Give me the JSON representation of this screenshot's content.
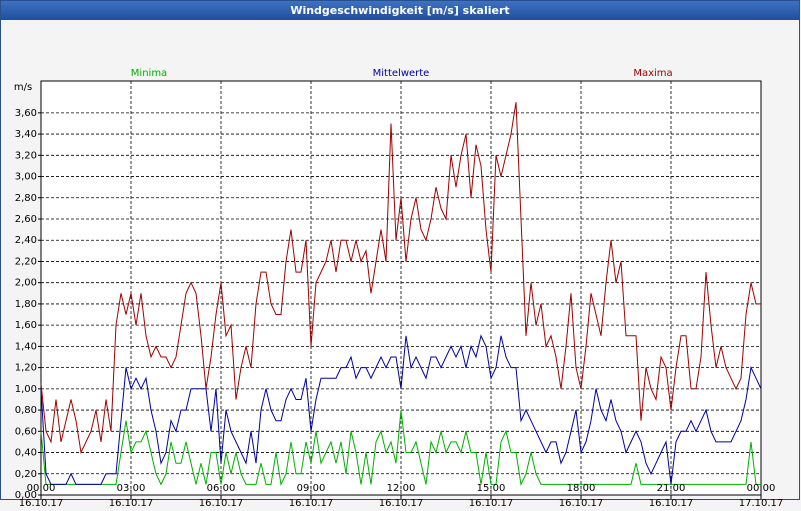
{
  "window_title": "Windgeschwindigkeit [m/s] skaliert",
  "chart_data": {
    "type": "line",
    "ylabel": "m/s",
    "x": [
      0,
      10,
      20,
      30,
      40,
      50,
      60,
      70,
      80,
      90,
      100,
      110,
      120,
      130,
      140,
      150,
      160,
      170,
      180,
      190,
      200,
      210,
      220,
      230,
      240,
      250,
      260,
      270,
      280,
      290,
      300,
      310,
      320,
      330,
      340,
      350,
      360,
      370,
      380,
      390,
      400,
      410,
      420,
      430,
      440,
      450,
      460,
      470,
      480,
      490,
      500,
      510,
      520,
      530,
      540,
      550,
      560,
      570,
      580,
      590,
      600,
      610,
      620,
      630,
      640,
      650,
      660,
      670,
      680,
      690,
      700,
      710,
      720,
      730,
      740,
      750,
      760,
      770,
      780,
      790,
      800,
      810,
      820,
      830,
      840,
      850,
      860,
      870,
      880,
      890,
      900,
      910,
      920,
      930,
      940,
      950,
      960,
      970,
      980,
      990,
      1000,
      1010,
      1020,
      1030,
      1040,
      1050,
      1060,
      1070,
      1080,
      1090,
      1100,
      1110,
      1120,
      1130,
      1140,
      1150,
      1160,
      1170,
      1180,
      1190,
      1200,
      1210,
      1220,
      1230,
      1240,
      1250,
      1260,
      1270,
      1280,
      1290,
      1300,
      1310,
      1320,
      1330,
      1340,
      1350,
      1360,
      1370,
      1380,
      1390,
      1400,
      1410,
      1420,
      1430,
      1440
    ],
    "series": [
      {
        "name": "Minima",
        "color": "#00b000",
        "values": [
          0.6,
          0.1,
          0.1,
          0.1,
          0.1,
          0.1,
          0.1,
          0.1,
          0.1,
          0.1,
          0.1,
          0.1,
          0.1,
          0.1,
          0.1,
          0.1,
          0.4,
          0.7,
          0.4,
          0.5,
          0.5,
          0.6,
          0.4,
          0.2,
          0.1,
          0.2,
          0.5,
          0.3,
          0.3,
          0.5,
          0.3,
          0.1,
          0.3,
          0.1,
          0.4,
          0.4,
          0.1,
          0.4,
          0.2,
          0.4,
          0.2,
          0.1,
          0.1,
          0.1,
          0.3,
          0.1,
          0.1,
          0.4,
          0.1,
          0.2,
          0.5,
          0.2,
          0.2,
          0.5,
          0.3,
          0.6,
          0.3,
          0.4,
          0.5,
          0.3,
          0.5,
          0.2,
          0.6,
          0.4,
          0.1,
          0.4,
          0.1,
          0.5,
          0.6,
          0.4,
          0.5,
          0.3,
          0.8,
          0.4,
          0.4,
          0.5,
          0.3,
          0.1,
          0.5,
          0.4,
          0.6,
          0.4,
          0.5,
          0.5,
          0.4,
          0.6,
          0.4,
          0.4,
          0.1,
          0.4,
          0.1,
          0.1,
          0.5,
          0.6,
          0.4,
          0.4,
          0.1,
          0.2,
          0.4,
          0.2,
          0.1,
          0.1,
          0.1,
          0.1,
          0.1,
          0.1,
          0.1,
          0.1,
          0.1,
          0.1,
          0.1,
          0.1,
          0.1,
          0.1,
          0.1,
          0.1,
          0.1,
          0.1,
          0.1,
          0.3,
          0.1,
          0.1,
          0.1,
          0.1,
          0.1,
          0.1,
          0.1,
          0.1,
          0.1,
          0.1,
          0.1,
          0.1,
          0.1,
          0.1,
          0.1,
          0.1,
          0.1,
          0.1,
          0.1,
          0.1,
          0.1,
          0.1,
          0.5,
          0.1,
          0.1
        ]
      },
      {
        "name": "Mittelwerte",
        "color": "#0000a0",
        "values": [
          1.0,
          0.2,
          0.1,
          0.1,
          0.1,
          0.1,
          0.2,
          0.1,
          0.1,
          0.1,
          0.1,
          0.1,
          0.1,
          0.2,
          0.2,
          0.2,
          0.7,
          1.2,
          1.0,
          1.1,
          1.0,
          1.1,
          0.8,
          0.6,
          0.3,
          0.4,
          0.7,
          0.6,
          0.8,
          0.8,
          1.0,
          1.0,
          1.0,
          1.0,
          0.6,
          1.0,
          0.3,
          0.8,
          0.6,
          0.5,
          0.4,
          0.3,
          0.6,
          0.3,
          0.8,
          1.0,
          0.8,
          0.7,
          0.7,
          0.9,
          1.0,
          0.9,
          0.9,
          1.1,
          0.6,
          0.9,
          1.1,
          1.1,
          1.1,
          1.1,
          1.2,
          1.2,
          1.3,
          1.1,
          1.2,
          1.2,
          1.1,
          1.2,
          1.3,
          1.2,
          1.3,
          1.3,
          1.0,
          1.5,
          1.2,
          1.3,
          1.2,
          1.1,
          1.3,
          1.3,
          1.2,
          1.3,
          1.4,
          1.3,
          1.4,
          1.2,
          1.4,
          1.3,
          1.5,
          1.4,
          1.1,
          1.2,
          1.5,
          1.3,
          1.2,
          1.2,
          0.7,
          0.8,
          0.7,
          0.6,
          0.5,
          0.4,
          0.5,
          0.5,
          0.3,
          0.4,
          0.6,
          0.8,
          0.4,
          0.5,
          0.7,
          1.0,
          0.8,
          0.7,
          0.9,
          0.7,
          0.6,
          0.4,
          0.5,
          0.6,
          0.5,
          0.3,
          0.2,
          0.3,
          0.4,
          0.5,
          0.1,
          0.5,
          0.6,
          0.6,
          0.7,
          0.6,
          0.7,
          0.8,
          0.6,
          0.5,
          0.5,
          0.5,
          0.5,
          0.6,
          0.7,
          0.9,
          1.2,
          1.1,
          1.0
        ]
      },
      {
        "name": "Maxima",
        "color": "#a00000",
        "values": [
          1.05,
          0.6,
          0.5,
          0.9,
          0.5,
          0.7,
          0.9,
          0.7,
          0.4,
          0.5,
          0.6,
          0.8,
          0.5,
          0.9,
          0.6,
          1.6,
          1.9,
          1.7,
          1.9,
          1.6,
          1.9,
          1.5,
          1.3,
          1.4,
          1.3,
          1.3,
          1.2,
          1.3,
          1.6,
          1.9,
          2.0,
          1.9,
          1.5,
          1.0,
          1.3,
          1.7,
          2.0,
          1.5,
          1.6,
          0.9,
          1.2,
          1.4,
          1.2,
          1.8,
          2.1,
          2.1,
          1.8,
          1.7,
          1.7,
          2.2,
          2.5,
          2.1,
          2.1,
          2.4,
          1.4,
          2.0,
          2.1,
          2.2,
          2.4,
          2.1,
          2.4,
          2.4,
          2.2,
          2.4,
          2.2,
          2.3,
          1.9,
          2.2,
          2.5,
          2.2,
          3.5,
          2.4,
          2.8,
          2.2,
          2.6,
          2.8,
          2.5,
          2.4,
          2.6,
          2.9,
          2.7,
          2.6,
          3.2,
          2.9,
          3.2,
          3.4,
          2.8,
          3.3,
          3.1,
          2.5,
          2.1,
          3.2,
          3.0,
          3.2,
          3.4,
          3.7,
          2.6,
          1.5,
          2.0,
          1.6,
          1.8,
          1.4,
          1.5,
          1.3,
          1.0,
          1.4,
          1.9,
          1.2,
          1.0,
          1.4,
          1.9,
          1.7,
          1.5,
          2.0,
          2.4,
          2.0,
          2.2,
          1.5,
          1.5,
          1.5,
          0.7,
          1.2,
          1.0,
          0.9,
          1.3,
          1.2,
          0.8,
          1.2,
          1.5,
          1.5,
          1.0,
          1.0,
          1.3,
          2.1,
          1.6,
          1.2,
          1.4,
          1.2,
          1.1,
          1.0,
          1.1,
          1.7,
          2.0,
          1.8,
          1.8
        ]
      }
    ],
    "xlim": [
      0,
      1440
    ],
    "xticks": [
      {
        "value": 0,
        "label": "00:00\n16.10.17"
      },
      {
        "value": 180,
        "label": "03:00\n16.10.17"
      },
      {
        "value": 360,
        "label": "06:00\n16.10.17"
      },
      {
        "value": 540,
        "label": "09:00\n16.10.17"
      },
      {
        "value": 720,
        "label": "12:00\n16.10.17"
      },
      {
        "value": 900,
        "label": "15:00\n16.10.17"
      },
      {
        "value": 1080,
        "label": "18:00\n16.10.17"
      },
      {
        "value": 1260,
        "label": "21:00\n16.10.17"
      },
      {
        "value": 1440,
        "label": "00:00\n17.10.17"
      }
    ],
    "ylim": [
      0,
      3.9
    ],
    "yticks": [
      {
        "value": 0,
        "label": "0,00"
      },
      {
        "value": 0.2,
        "label": "0,20"
      },
      {
        "value": 0.4,
        "label": "0,40"
      },
      {
        "value": 0.6,
        "label": "0,60"
      },
      {
        "value": 0.8,
        "label": "0,80"
      },
      {
        "value": 1.0,
        "label": "1,00"
      },
      {
        "value": 1.2,
        "label": "1,20"
      },
      {
        "value": 1.4,
        "label": "1,40"
      },
      {
        "value": 1.6,
        "label": "1,60"
      },
      {
        "value": 1.8,
        "label": "1,80"
      },
      {
        "value": 2.0,
        "label": "2,00"
      },
      {
        "value": 2.2,
        "label": "2,20"
      },
      {
        "value": 2.4,
        "label": "2,40"
      },
      {
        "value": 2.6,
        "label": "2,60"
      },
      {
        "value": 2.8,
        "label": "2,80"
      },
      {
        "value": 3.0,
        "label": "3,00"
      },
      {
        "value": 3.2,
        "label": "3,20"
      },
      {
        "value": 3.4,
        "label": "3,40"
      },
      {
        "value": 3.6,
        "label": "3,60"
      }
    ],
    "grid": true,
    "legend": "top"
  }
}
